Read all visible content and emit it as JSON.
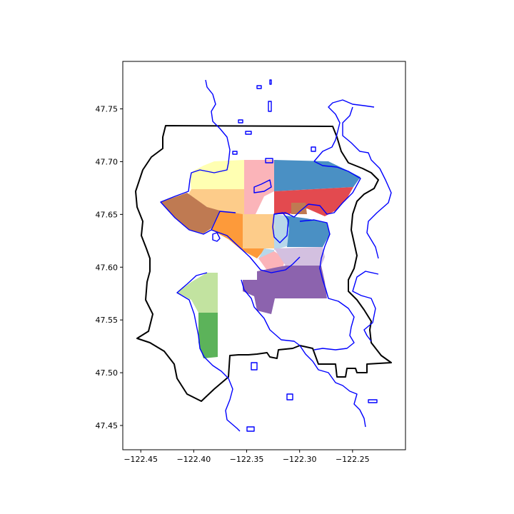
{
  "map": {
    "x_ticks": [
      "−122.45",
      "−122.40",
      "−122.35",
      "−122.30",
      "−122.25"
    ],
    "y_ticks": [
      "47.75",
      "47.70",
      "47.65",
      "47.60",
      "47.55",
      "47.50",
      "47.45"
    ],
    "x_tick_values": [
      -122.45,
      -122.4,
      -122.35,
      -122.3,
      -122.25
    ],
    "y_tick_values": [
      47.75,
      47.7,
      47.65,
      47.6,
      47.55,
      47.5,
      47.45
    ],
    "xlim": [
      -122.467,
      -122.2
    ],
    "ylim": [
      47.427,
      47.795
    ],
    "colors": {
      "boundary": "#000000",
      "water": "#0000ff",
      "light_yellow": "#ffffb2",
      "pink": "#fbb4b9",
      "blue": "#4a90c4",
      "red": "#e34a4f",
      "brown": "#bf7a52",
      "peach": "#fdcc8a",
      "orange": "#fd9a3a",
      "light_blue": "#b8d7ea",
      "lavender": "#d3c0e0",
      "purple": "#8c63ae",
      "light_green": "#c2e3a0",
      "green": "#5cb35a"
    }
  }
}
